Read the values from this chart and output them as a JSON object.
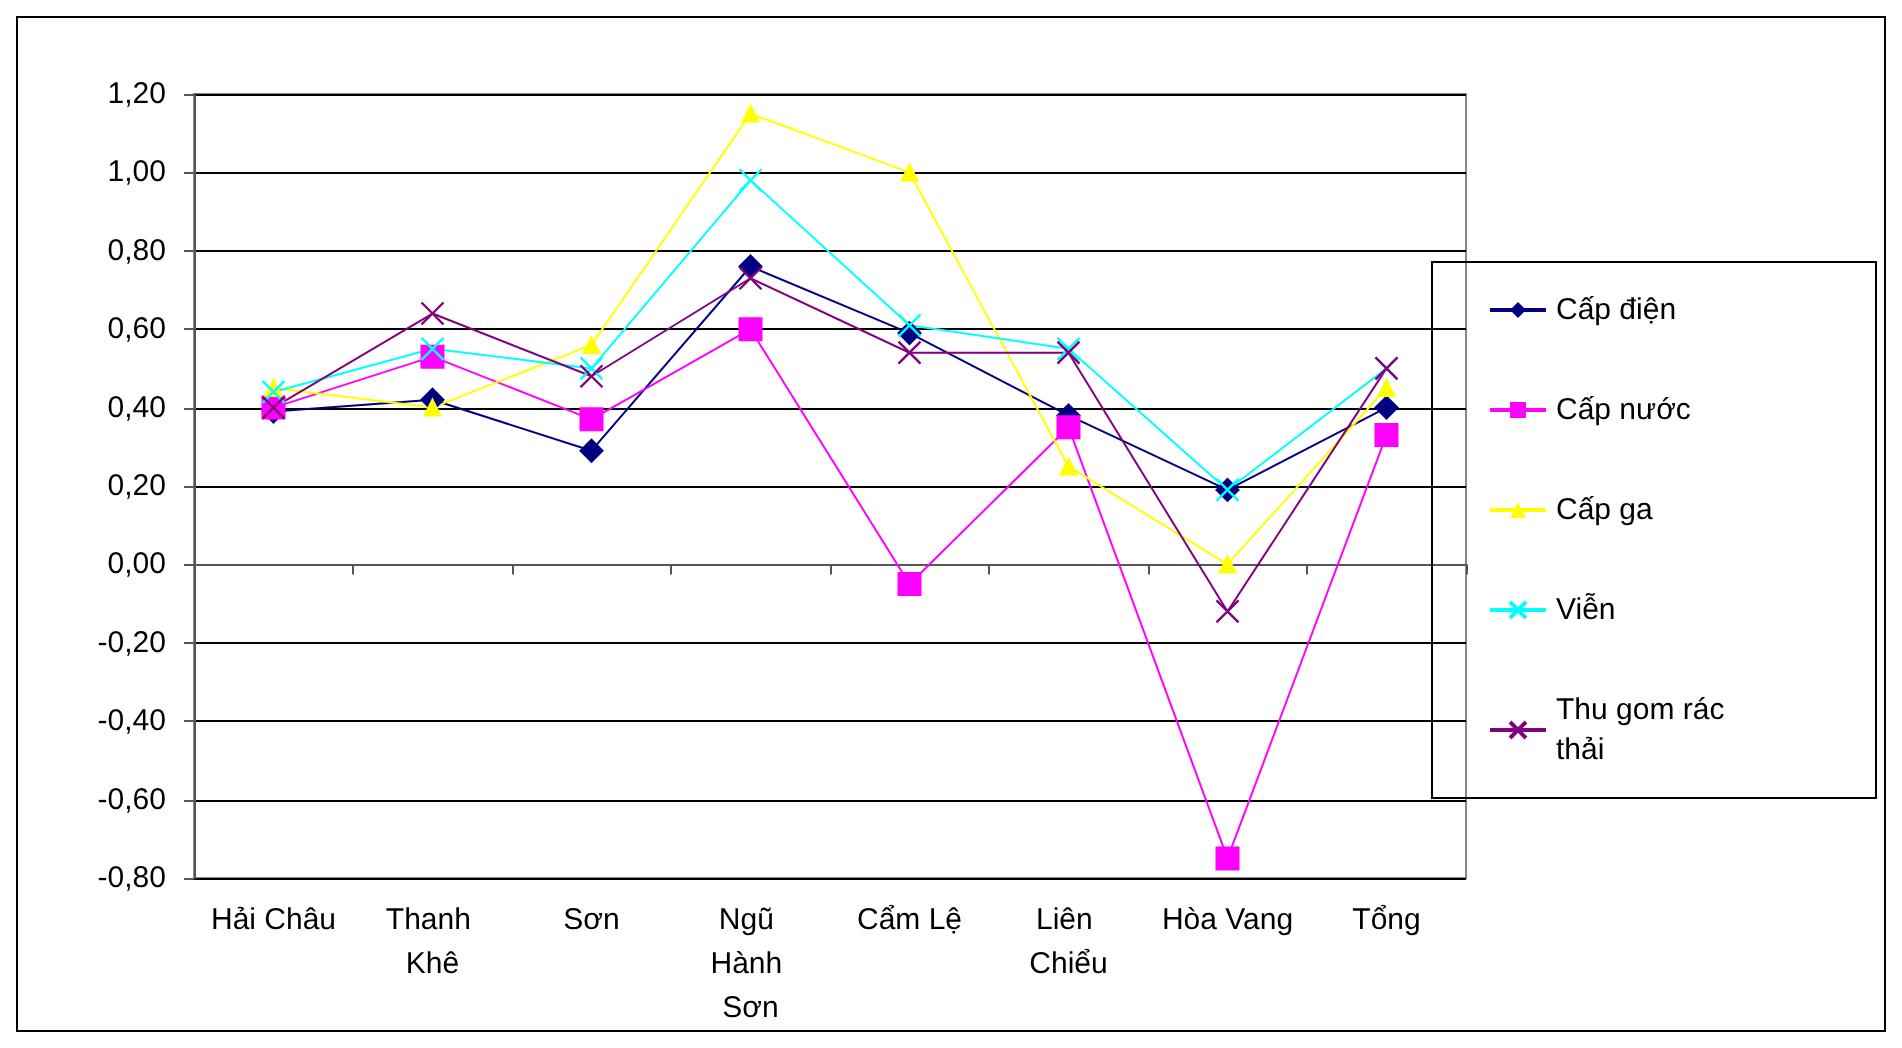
{
  "chart_data": {
    "type": "line",
    "categories": [
      "Hải Châu",
      "Thanh Khê",
      "Sơn",
      "Ngũ Hành Sơn",
      "Cẩm Lệ",
      "Liên Chiểu",
      "Hòa Vang",
      "Tổng"
    ],
    "series": [
      {
        "name": "Cấp điện",
        "color": "#000080",
        "marker": "diamond",
        "values": [
          0.39,
          0.42,
          0.29,
          0.76,
          0.59,
          0.38,
          0.19,
          0.4
        ]
      },
      {
        "name": "Cấp nước",
        "color": "#ff00ff",
        "marker": "square",
        "values": [
          0.4,
          0.53,
          0.37,
          0.6,
          -0.05,
          0.35,
          -0.75,
          0.33
        ]
      },
      {
        "name": "Cấp ga",
        "color": "#ffff00",
        "marker": "triangle",
        "values": [
          0.45,
          0.4,
          0.56,
          1.15,
          1.0,
          0.25,
          0.0,
          0.45
        ]
      },
      {
        "name": "Viễn",
        "color": "#00ffff",
        "marker": "cross",
        "values": [
          0.44,
          0.55,
          0.5,
          0.98,
          0.61,
          0.55,
          0.19,
          0.5
        ]
      },
      {
        "name": "Thu gom rác thải",
        "color": "#800080",
        "marker": "cross",
        "values": [
          0.4,
          0.64,
          0.48,
          0.73,
          0.54,
          0.54,
          -0.12,
          0.5
        ]
      }
    ],
    "ylim": [
      -0.8,
      1.2
    ],
    "yticks": [
      {
        "value": -0.8,
        "label": "-0,80"
      },
      {
        "value": -0.6,
        "label": "-0,60"
      },
      {
        "value": -0.4,
        "label": "-0,40"
      },
      {
        "value": -0.2,
        "label": "-0,20"
      },
      {
        "value": 0,
        "label": "0,00"
      },
      {
        "value": 0.2,
        "label": "0,20"
      },
      {
        "value": 0.4,
        "label": "0,40"
      },
      {
        "value": 0.6,
        "label": "0,60"
      },
      {
        "value": 0.8,
        "label": "0,80"
      },
      {
        "value": 1.0,
        "label": "1,00"
      },
      {
        "value": 1.2,
        "label": "1,20"
      }
    ],
    "grid": "y",
    "legend": "right"
  }
}
